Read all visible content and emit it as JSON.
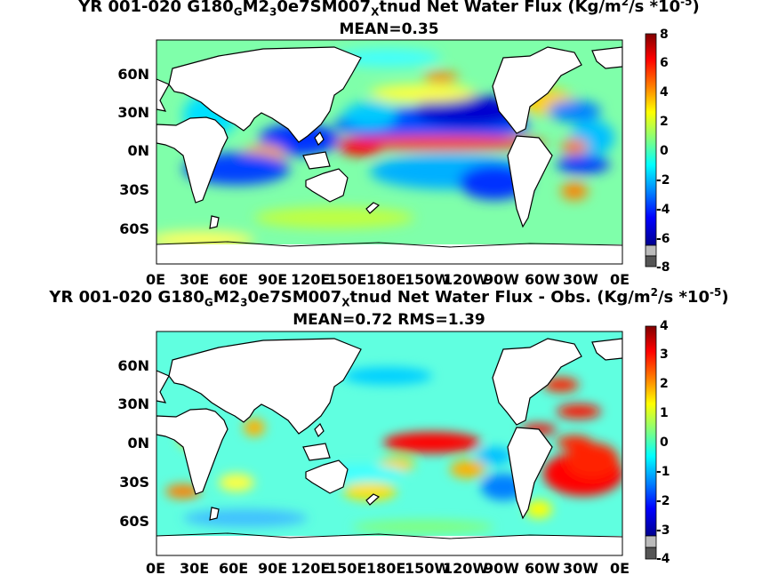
{
  "panel1": {
    "title_prefix": "YR 001-020 G180",
    "title_s1": "G",
    "title_m1": "M2",
    "title_s2": "3",
    "title_m2": "0e7SM007",
    "title_s3": "X",
    "title_m3": "tnud  Net Water Flux (Kg/m",
    "title_sup1": "2",
    "title_m4": "/s *10",
    "title_sup2": "-5",
    "title_end": ")",
    "subtitle": "MEAN=0.35",
    "colorbar_ticks": [
      "8",
      "6",
      "4",
      "2",
      "0",
      "-2",
      "-4",
      "-6",
      "-8"
    ]
  },
  "panel2": {
    "title_prefix": "YR 001-020 G180",
    "title_s1": "G",
    "title_m1": "M2",
    "title_s2": "3",
    "title_m2": "0e7SM007",
    "title_s3": "X",
    "title_m3": "tnud  Net Water Flux - Obs. (Kg/m",
    "title_sup1": "2",
    "title_m4": "/s *10",
    "title_sup2": "-5",
    "title_end": ")",
    "subtitle": "MEAN=0.72 RMS=1.39",
    "colorbar_ticks": [
      "4",
      "3",
      "2",
      "1",
      "0",
      "-1",
      "-2",
      "-3",
      "-4"
    ]
  },
  "lat_labels": [
    "60N",
    "30N",
    "0N",
    "30S",
    "60S"
  ],
  "lon_labels": [
    "0E",
    "30E",
    "60E",
    "90E",
    "120E",
    "150E",
    "180E",
    "150W",
    "120W",
    "90W",
    "60W",
    "30W",
    "0E"
  ],
  "colors": {
    "ocean_base": "#7fffaa",
    "land": "#ffffff",
    "colormap": [
      "#00008f",
      "#0000ff",
      "#0080ff",
      "#00ffff",
      "#80ff80",
      "#ffff00",
      "#ff8000",
      "#ff0000",
      "#800000"
    ]
  }
}
